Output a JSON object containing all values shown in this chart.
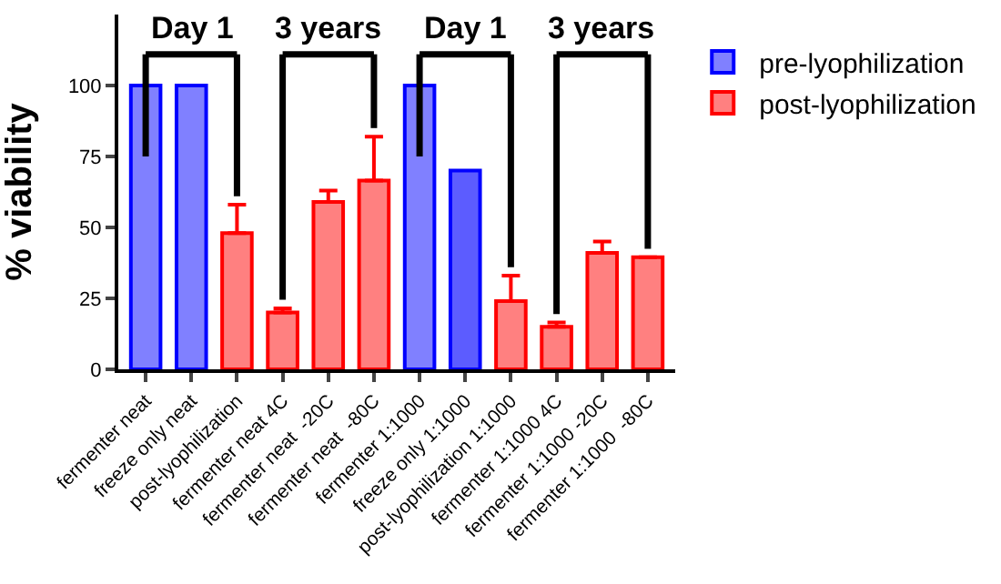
{
  "chart_data": {
    "type": "bar",
    "ylabel": "% viability",
    "categories": [
      "fermenter neat",
      "freeze only neat",
      "post-lyophilization",
      "fermenter neat 4C",
      "fermenter neat  -20C",
      "fermenter neat  -80C",
      "fermenter 1:1000",
      "freeze only 1:1000",
      "post-lyophilization 1:1000",
      "fermenter 1:1000 4C",
      "fermenter 1:1000 -20C",
      "fermenter 1:1000  -80C"
    ],
    "series": [
      {
        "name": "pre-lyophilization",
        "color": "#8080ff",
        "colors": [
          "#8080ff",
          "#8080ff",
          null,
          null,
          null,
          null,
          "#8080ff",
          "#5c5cff",
          null,
          null,
          null,
          null
        ],
        "values": [
          100,
          100,
          null,
          null,
          null,
          null,
          100,
          70,
          null,
          null,
          null,
          null
        ]
      },
      {
        "name": "post-lyophilization",
        "color": "#ff8080",
        "values": [
          null,
          null,
          48,
          20,
          59,
          66.5,
          null,
          null,
          24,
          15,
          41,
          39.5
        ],
        "errors": [
          null,
          null,
          [
            48,
            58
          ],
          [
            20,
            21.5
          ],
          [
            59,
            63
          ],
          [
            66.5,
            82
          ],
          null,
          null,
          [
            24,
            33
          ],
          [
            15,
            16.5
          ],
          [
            41,
            45
          ],
          null
        ]
      }
    ],
    "annotations": [
      "Day 1",
      "3 years",
      "Day 1",
      "3 years"
    ],
    "ylim": [
      0,
      125
    ],
    "yticks": [
      0,
      25,
      50,
      75,
      100
    ],
    "legend": "top right"
  }
}
